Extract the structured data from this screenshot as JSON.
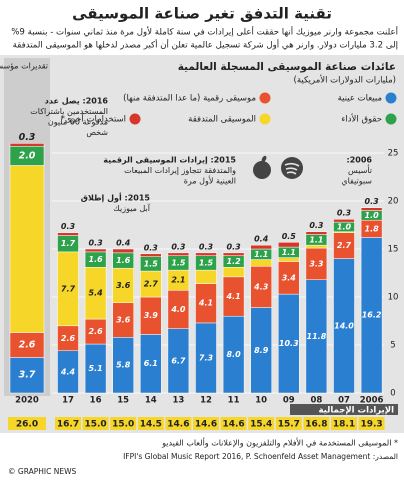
{
  "header": {
    "title": "تقنية التدفق تغير صناعة الموسيقى",
    "subtitle": [
      "أعلنت مجموعة وارنر ميوزيك أنها حققت أعلى إيرادات في سنة كاملة لأول مرة منذ ثماني سنوات - بنسبة 9%",
      "إلى 3.2 مليارات دولار. وارنر هي أول شركة تسجيل عالمية تعلن أن أكبر مصدر لدخلها هو الموسيقى المتدفقة"
    ]
  },
  "chart_data": {
    "type": "bar",
    "stacked": true,
    "title": "عائدات صناعة الموسيقى المسجلة العالمية",
    "subtitle": "(مليارات الدولارات الأمريكية)",
    "estimate_label": "تقديرات مؤسسة PSAM",
    "categories": [
      "2020",
      "17",
      "16",
      "15",
      "14",
      "13",
      "12",
      "11",
      "10",
      "09",
      "08",
      "07",
      "2006"
    ],
    "series": [
      {
        "name": "مبيعات عينية",
        "color": "#2b7fd0",
        "values": [
          3.7,
          4.4,
          5.1,
          5.8,
          6.1,
          6.7,
          7.3,
          8.0,
          8.9,
          10.3,
          11.8,
          14.0,
          16.2
        ],
        "value_labels": [
          "3.7",
          "4.4",
          "5.1",
          "5.8",
          "6.1",
          "6.7",
          "7.3",
          "8.0",
          "8.9",
          "10.3",
          "11.8",
          "14.0",
          "16.2"
        ]
      },
      {
        "name": "موسيقى رقمية (ما عدا المتدفقة منها)",
        "color": "#e8522f",
        "values": [
          2.6,
          2.6,
          2.6,
          3.6,
          3.9,
          4.0,
          4.1,
          4.1,
          4.3,
          3.4,
          3.3,
          2.7,
          1.8
        ],
        "value_labels": [
          "2.6",
          "2.6",
          "2.6",
          "3.6",
          "3.9",
          "4.0",
          "4.1",
          "4.1",
          "4.3",
          "3.4",
          "3.3",
          "2.7",
          "1.8"
        ]
      },
      {
        "name": "الموسيقى المتدفقة",
        "color": "#f5d629",
        "values": [
          17.4,
          7.7,
          5.4,
          3.6,
          2.7,
          2.1,
          1.4,
          1.0,
          0.7,
          0.4,
          0.3,
          0.1,
          0
        ],
        "value_labels": [
          null,
          "7.7",
          "5.4",
          "3.6",
          "2.7",
          "2.1",
          null,
          null,
          null,
          null,
          null,
          null,
          null
        ]
      },
      {
        "name": "حقوق الأداء",
        "color": "#2ea24a",
        "values": [
          2.0,
          1.7,
          1.6,
          1.6,
          1.5,
          1.5,
          1.5,
          1.2,
          1.1,
          1.1,
          1.1,
          1.0,
          1.0
        ],
        "value_labels": [
          "2.0",
          "1.7",
          "1.6",
          "1.6",
          "1.5",
          "1.5",
          "1.5",
          "1.2",
          "1.1",
          "1.1",
          "1.1",
          "1.0",
          "1.0"
        ]
      },
      {
        "name": "استخدامات أخرى*",
        "color": "#d7372a",
        "values": [
          0.3,
          0.3,
          0.3,
          0.4,
          0.3,
          0.3,
          0.3,
          0.3,
          0.4,
          0.5,
          0.3,
          0.3,
          0.3
        ],
        "value_labels": [
          "0.3",
          "0.3",
          "0.3",
          "0.4",
          "0.3",
          "0.3",
          "0.3",
          "0.3",
          "0.4",
          "0.5",
          "0.3",
          "0.3",
          "0.3"
        ]
      }
    ],
    "ylim": [
      0,
      25
    ],
    "yticks": [
      0,
      5,
      10,
      15,
      20,
      25
    ],
    "grid": true,
    "total_label": "الإيرادات الإجمالية",
    "totals": [
      26.0,
      16.7,
      15.0,
      15.0,
      14.5,
      14.6,
      14.6,
      14.6,
      15.4,
      15.7,
      16.8,
      18.1,
      19.3
    ],
    "totals_labels": [
      "26.0",
      "16.7",
      "15.0",
      "15.0",
      "14.5",
      "14.6",
      "14.6",
      "14.6",
      "15.4",
      "15.7",
      "16.8",
      "18.1",
      "19.3"
    ],
    "annotations": [
      {
        "lines": [
          "2016: يصل عدد",
          "المستخدمين باشتراكات",
          "مدفوعة 60 مليون",
          "شخص"
        ]
      },
      {
        "lines": [
          "2015: إيرادات الموسيقى الرقمية",
          "والمتدفقة تتجاوز إيرادات المبيعات",
          "العينية لأول مرة"
        ]
      },
      {
        "lines": [
          "2015: أول إطلاق",
          "آبل ميوزيك"
        ]
      },
      {
        "lines": [
          "2006:",
          "تأسيس",
          "سبوتيفاي"
        ]
      }
    ],
    "footnote": "* الموسيقى المستخدمة في الأفلام والتلفزيون والإعلانات وألعاب الفيديو",
    "source": "المصدر: IFPI's Global Music Report 2016, P. Schoenfeld Asset Management"
  },
  "credit": "© GRAPHIC NEWS"
}
